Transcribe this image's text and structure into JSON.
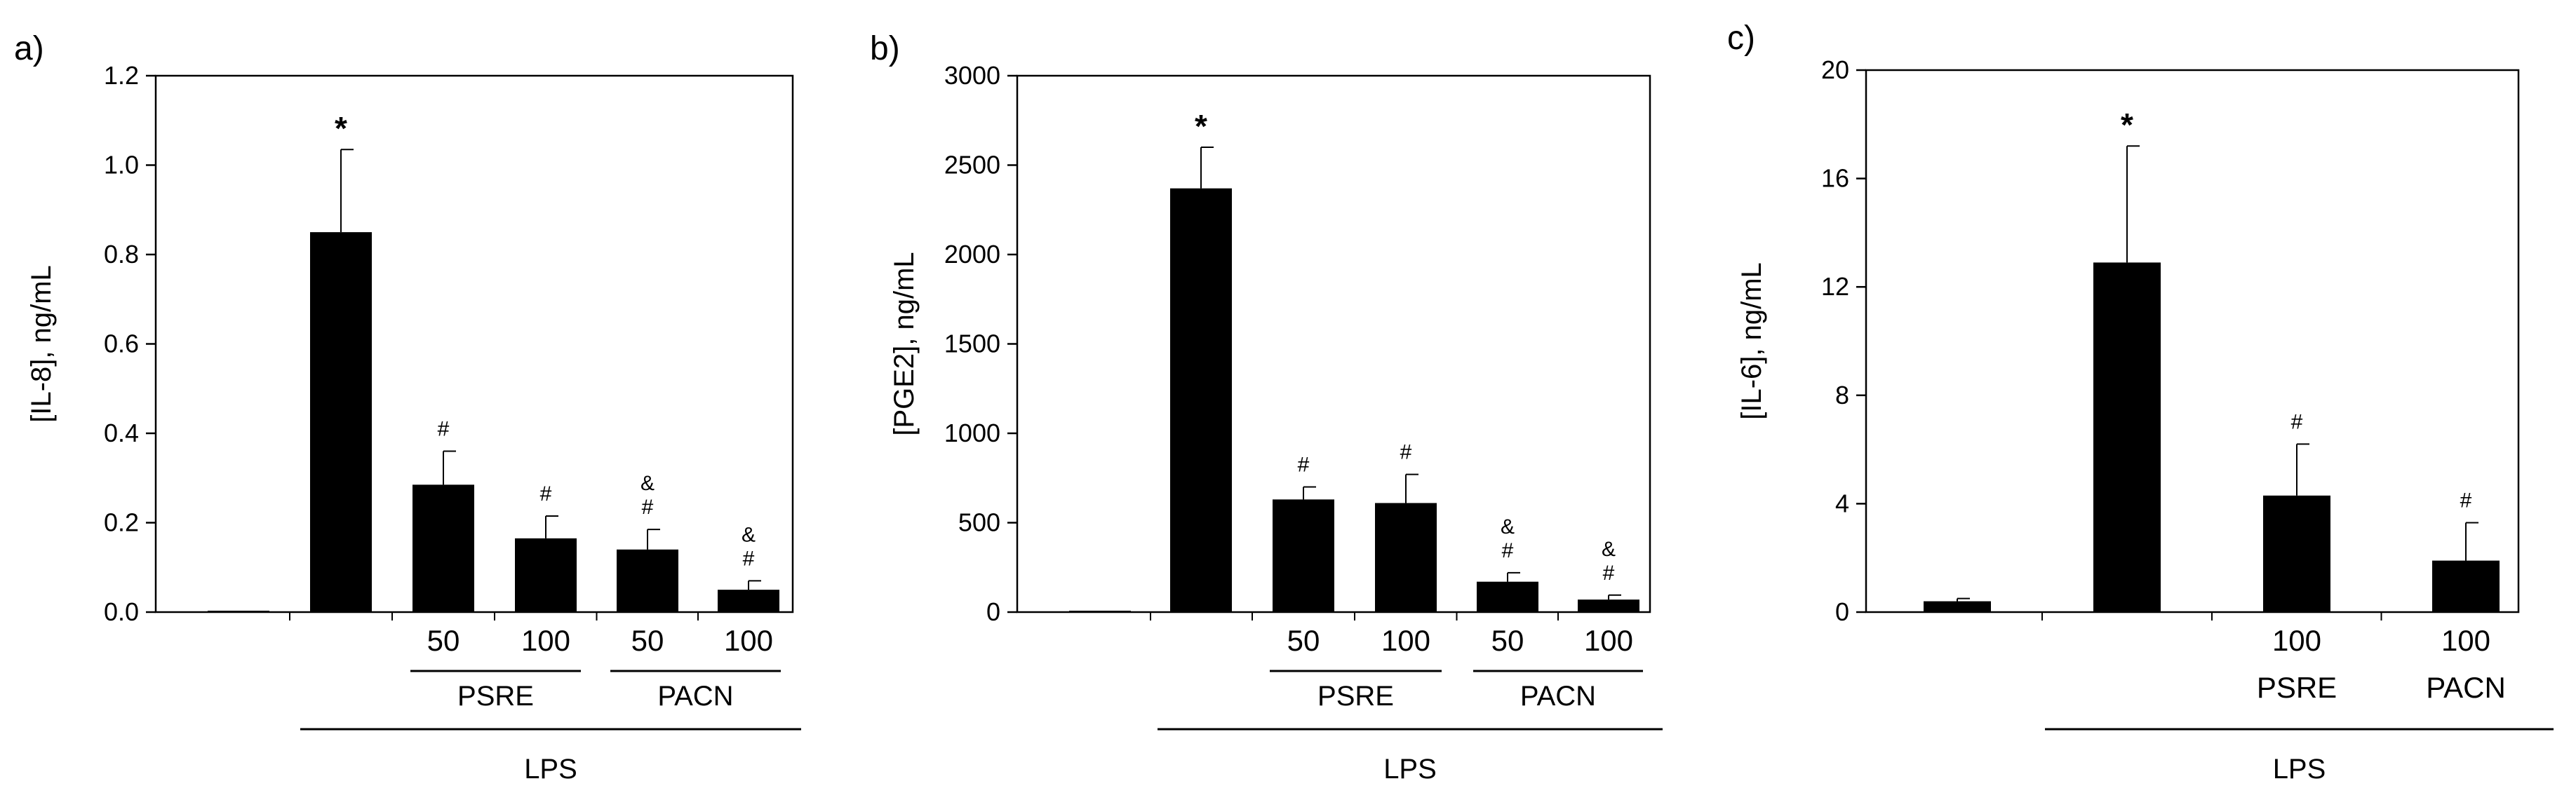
{
  "chart_data": [
    {
      "type": "bar",
      "panel_label": "a)",
      "ylabel": "[IL-8], ng/mL",
      "ylim": [
        0,
        1.2
      ],
      "yticks": [
        "0.0",
        "0.2",
        "0.4",
        "0.6",
        "0.8",
        "1.0",
        "1.2"
      ],
      "values": [
        0.0,
        0.85,
        0.285,
        0.165,
        0.14,
        0.05
      ],
      "errors": [
        0.0,
        0.185,
        0.075,
        0.05,
        0.045,
        0.02
      ],
      "bar_labels": [
        "",
        "*",
        "#",
        "#",
        "&\n#",
        "&\n#"
      ],
      "x_labels": [
        "",
        "",
        "50",
        "100",
        "50",
        "100"
      ],
      "groups": [
        {
          "label": "PSRE",
          "from": 2,
          "to": 3
        },
        {
          "label": "PACN",
          "from": 4,
          "to": 5
        }
      ],
      "outer_group": {
        "label": "LPS",
        "from": 1,
        "to": 5
      }
    },
    {
      "type": "bar",
      "panel_label": "b)",
      "ylabel": "[PGE2], ng/mL",
      "ylim": [
        0,
        3000
      ],
      "yticks": [
        "0",
        "500",
        "1000",
        "1500",
        "2000",
        "2500",
        "3000"
      ],
      "values": [
        5,
        2370,
        630,
        610,
        170,
        70
      ],
      "errors": [
        0,
        230,
        70,
        160,
        50,
        25
      ],
      "bar_labels": [
        "",
        "*",
        "#",
        "#",
        "&\n#",
        "&\n#"
      ],
      "x_labels": [
        "",
        "",
        "50",
        "100",
        "50",
        "100"
      ],
      "groups": [
        {
          "label": "PSRE",
          "from": 2,
          "to": 3
        },
        {
          "label": "PACN",
          "from": 4,
          "to": 5
        }
      ],
      "outer_group": {
        "label": "LPS",
        "from": 1,
        "to": 5
      }
    },
    {
      "type": "bar",
      "panel_label": "c)",
      "ylabel": "[IL-6], ng/mL",
      "ylim": [
        0,
        20
      ],
      "yticks": [
        "0",
        "4",
        "8",
        "12",
        "16",
        "20"
      ],
      "values": [
        0.4,
        12.9,
        4.3,
        1.9
      ],
      "errors": [
        0.1,
        4.3,
        1.9,
        1.4
      ],
      "bar_labels": [
        "",
        "*",
        "#",
        "#"
      ],
      "x_labels": [
        "",
        "",
        "100",
        "100"
      ],
      "x_sublabels": [
        "",
        "",
        "PSRE",
        "PACN"
      ],
      "groups": [],
      "outer_group": {
        "label": "LPS",
        "from": 1,
        "to": 3
      }
    }
  ]
}
